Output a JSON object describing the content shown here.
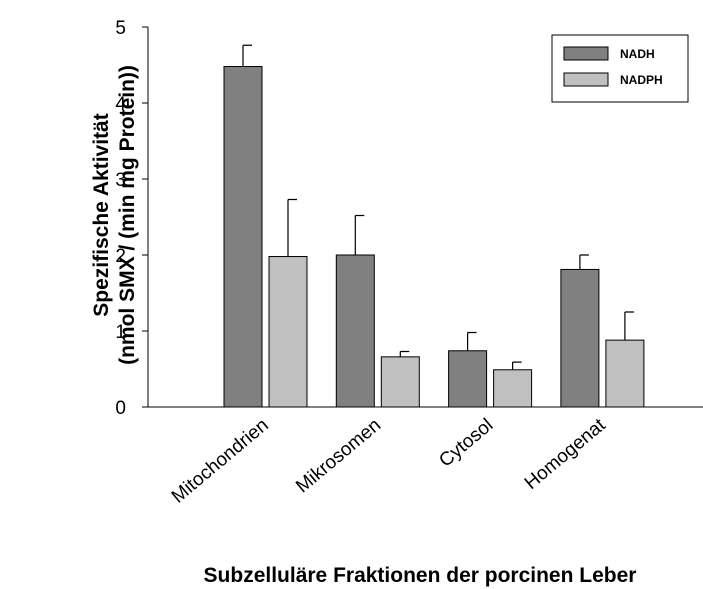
{
  "chart_data": {
    "type": "bar",
    "categories": [
      "Mitochondrien",
      "Mikrosomen",
      "Cytosol",
      "Homogenat"
    ],
    "series": [
      {
        "name": "NADH",
        "color": "#808080",
        "values": [
          4.48,
          2.0,
          0.74,
          1.81
        ],
        "errors": [
          0.28,
          0.52,
          0.24,
          0.19
        ]
      },
      {
        "name": "NADPH",
        "color": "#c0c0c0",
        "values": [
          1.98,
          0.66,
          0.49,
          0.88
        ],
        "errors": [
          0.75,
          0.07,
          0.1,
          0.37
        ]
      }
    ],
    "ylim": [
      0,
      5
    ],
    "yticks": [
      0,
      1,
      2,
      3,
      4,
      5
    ],
    "y_label": [
      "Spezifische Aktivität",
      "(nmol SMX / (min mg Protein))"
    ],
    "x_label": "Subzelluläre Fraktionen der porcinen Leber",
    "legend": "upper right"
  }
}
